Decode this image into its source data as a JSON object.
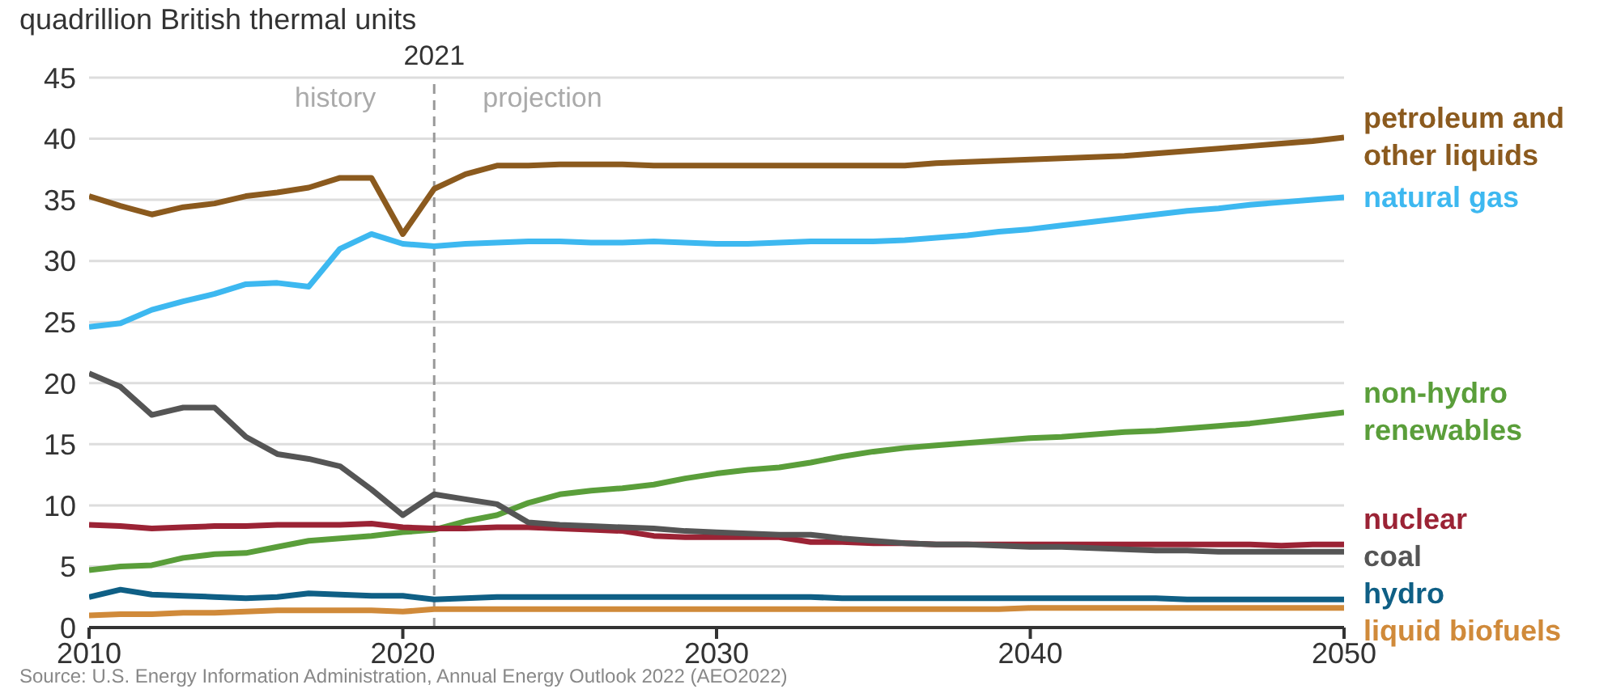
{
  "chart_data": {
    "type": "line",
    "ylabel": "quadrillion British thermal units",
    "x": [
      2010,
      2011,
      2012,
      2013,
      2014,
      2015,
      2016,
      2017,
      2018,
      2019,
      2020,
      2021,
      2022,
      2023,
      2024,
      2025,
      2026,
      2027,
      2028,
      2029,
      2030,
      2031,
      2032,
      2033,
      2034,
      2035,
      2036,
      2037,
      2038,
      2039,
      2040,
      2041,
      2042,
      2043,
      2044,
      2045,
      2046,
      2047,
      2048,
      2049,
      2050
    ],
    "series": [
      {
        "name": "petroleum and other liquids",
        "color": "#8b5a1e",
        "values": [
          35.3,
          34.5,
          33.8,
          34.4,
          34.7,
          35.3,
          35.6,
          36.0,
          36.8,
          36.8,
          32.2,
          35.9,
          37.1,
          37.8,
          37.8,
          37.9,
          37.9,
          37.9,
          37.8,
          37.8,
          37.8,
          37.8,
          37.8,
          37.8,
          37.8,
          37.8,
          37.8,
          38.0,
          38.1,
          38.2,
          38.3,
          38.4,
          38.5,
          38.6,
          38.8,
          39.0,
          39.2,
          39.4,
          39.6,
          39.8,
          40.1
        ]
      },
      {
        "name": "natural gas",
        "color": "#3db8f0",
        "values": [
          24.6,
          24.9,
          26.0,
          26.7,
          27.3,
          28.1,
          28.2,
          27.9,
          31.0,
          32.2,
          31.4,
          31.2,
          31.4,
          31.5,
          31.6,
          31.6,
          31.5,
          31.5,
          31.6,
          31.5,
          31.4,
          31.4,
          31.5,
          31.6,
          31.6,
          31.6,
          31.7,
          31.9,
          32.1,
          32.4,
          32.6,
          32.9,
          33.2,
          33.5,
          33.8,
          34.1,
          34.3,
          34.6,
          34.8,
          35.0,
          35.2
        ]
      },
      {
        "name": "non-hydro renewables",
        "color": "#5a9e3a",
        "values": [
          4.7,
          5.0,
          5.1,
          5.7,
          6.0,
          6.1,
          6.6,
          7.1,
          7.3,
          7.5,
          7.8,
          8.0,
          8.7,
          9.2,
          10.2,
          10.9,
          11.2,
          11.4,
          11.7,
          12.2,
          12.6,
          12.9,
          13.1,
          13.5,
          14.0,
          14.4,
          14.7,
          14.9,
          15.1,
          15.3,
          15.5,
          15.6,
          15.8,
          16.0,
          16.1,
          16.3,
          16.5,
          16.7,
          17.0,
          17.3,
          17.6
        ]
      },
      {
        "name": "nuclear",
        "color": "#9b2335",
        "values": [
          8.4,
          8.3,
          8.1,
          8.2,
          8.3,
          8.3,
          8.4,
          8.4,
          8.4,
          8.5,
          8.2,
          8.1,
          8.1,
          8.2,
          8.2,
          8.1,
          8.0,
          7.9,
          7.5,
          7.4,
          7.4,
          7.4,
          7.4,
          7.0,
          7.0,
          6.9,
          6.9,
          6.8,
          6.8,
          6.8,
          6.8,
          6.8,
          6.8,
          6.8,
          6.8,
          6.8,
          6.8,
          6.8,
          6.7,
          6.8,
          6.8
        ]
      },
      {
        "name": "coal",
        "color": "#555555",
        "values": [
          20.8,
          19.7,
          17.4,
          18.0,
          18.0,
          15.6,
          14.2,
          13.8,
          13.2,
          11.3,
          9.2,
          10.9,
          10.5,
          10.1,
          8.6,
          8.4,
          8.3,
          8.2,
          8.1,
          7.9,
          7.8,
          7.7,
          7.6,
          7.6,
          7.3,
          7.1,
          6.9,
          6.8,
          6.8,
          6.7,
          6.6,
          6.6,
          6.5,
          6.4,
          6.3,
          6.3,
          6.2,
          6.2,
          6.2,
          6.2,
          6.2
        ]
      },
      {
        "name": "hydro",
        "color": "#0f5f85",
        "values": [
          2.5,
          3.1,
          2.7,
          2.6,
          2.5,
          2.4,
          2.5,
          2.8,
          2.7,
          2.6,
          2.6,
          2.3,
          2.4,
          2.5,
          2.5,
          2.5,
          2.5,
          2.5,
          2.5,
          2.5,
          2.5,
          2.5,
          2.5,
          2.5,
          2.4,
          2.4,
          2.4,
          2.4,
          2.4,
          2.4,
          2.4,
          2.4,
          2.4,
          2.4,
          2.4,
          2.3,
          2.3,
          2.3,
          2.3,
          2.3,
          2.3
        ]
      },
      {
        "name": "liquid biofuels",
        "color": "#d08a3a",
        "values": [
          1.0,
          1.1,
          1.1,
          1.2,
          1.2,
          1.3,
          1.4,
          1.4,
          1.4,
          1.4,
          1.3,
          1.5,
          1.5,
          1.5,
          1.5,
          1.5,
          1.5,
          1.5,
          1.5,
          1.5,
          1.5,
          1.5,
          1.5,
          1.5,
          1.5,
          1.5,
          1.5,
          1.5,
          1.5,
          1.5,
          1.6,
          1.6,
          1.6,
          1.6,
          1.6,
          1.6,
          1.6,
          1.6,
          1.6,
          1.6,
          1.6
        ]
      }
    ],
    "xlim": [
      2010,
      2050
    ],
    "xticks": [
      2010,
      2020,
      2030,
      2040,
      2050
    ],
    "ylim": [
      0,
      45
    ],
    "yticks": [
      0,
      5,
      10,
      15,
      20,
      25,
      30,
      35,
      40,
      45
    ],
    "grid": "y",
    "marker": "none",
    "line_style": "solid",
    "ref_lines": [
      {
        "axis": "x",
        "value": 2021,
        "label": "2021",
        "color": "#999999",
        "line_style": "dashed"
      }
    ],
    "annotations": [
      "history",
      "projection",
      "Source: U.S. Energy Information Administration, Annual Energy Outlook 2022 (AEO2022)"
    ]
  }
}
